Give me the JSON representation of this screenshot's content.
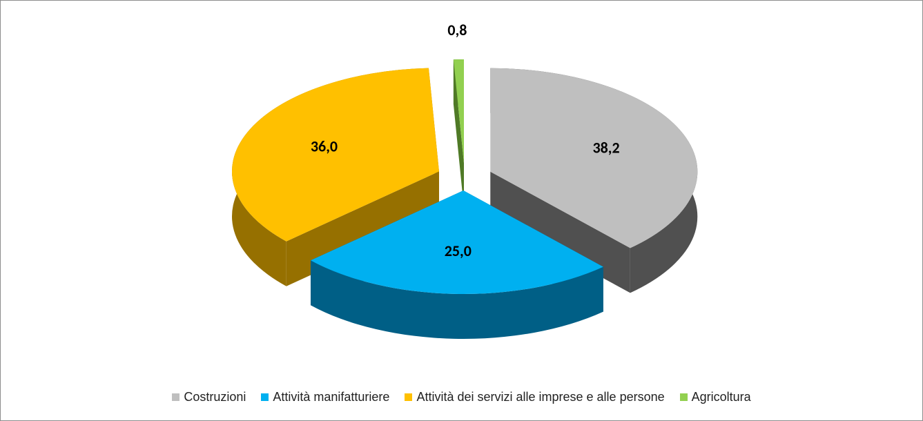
{
  "chart_data": {
    "type": "pie3d",
    "categories": [
      "Costruzioni",
      "Attività manifatturiere",
      "Attività dei servizi alle imprese e alle persone",
      "Agricoltura"
    ],
    "values": [
      38.2,
      25.0,
      36.0,
      0.8
    ],
    "value_labels": [
      "38,2",
      "25,0",
      "36,0",
      "0,8"
    ],
    "colors": [
      "#bfbfbf",
      "#00b0f0",
      "#ffc000",
      "#92d050"
    ],
    "side_colors": [
      "#505050",
      "#005f86",
      "#967000",
      "#4f7a26"
    ],
    "legend": "bottom"
  }
}
